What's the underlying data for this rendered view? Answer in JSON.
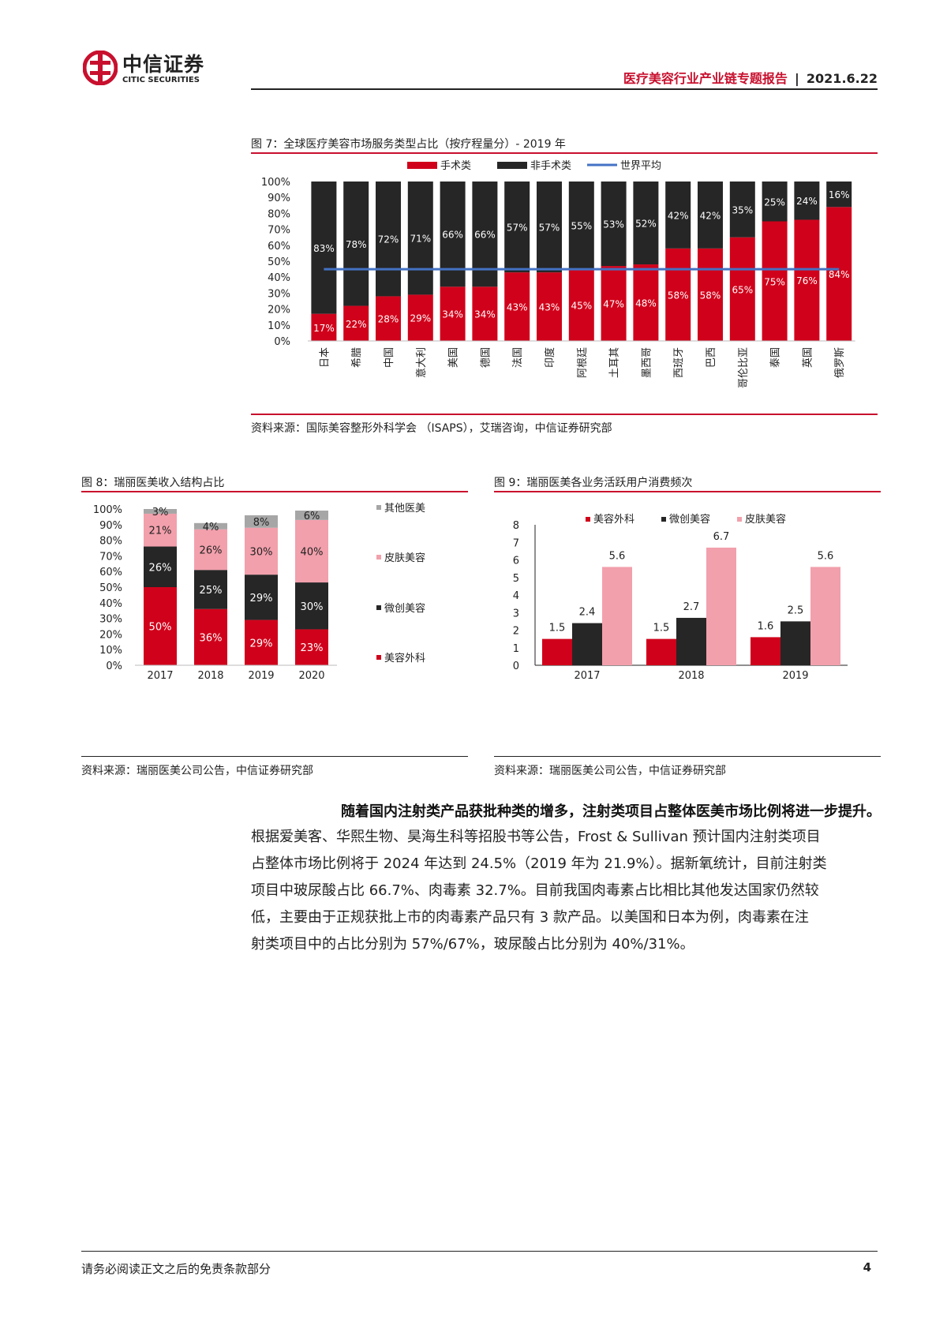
{
  "header": {
    "logo_cn": "中信证券",
    "logo_en": "CITIC SECURITIES",
    "report_title": "医疗美容行业产业链专题报告",
    "separator": "|",
    "date": "2021.6.22"
  },
  "figure7": {
    "title": "图 7：全球医疗美容市场服务类型占比（按疗程量分）- 2019 年",
    "source": "资料来源：国际美容整形外科学会 （ISAPS），艾瑞咨询，中信证券研究部",
    "legend": [
      "手术类",
      "非手术类",
      "世界平均"
    ],
    "colors": {
      "surgical": "#d0021b",
      "nonsurgical": "#262626",
      "average": "#4472c4"
    }
  },
  "figure8": {
    "title": "图 8：瑞丽医美收入结构占比",
    "source": "资料来源：瑞丽医美公司公告，中信证券研究部",
    "legend": [
      "其他医美",
      "皮肤美容",
      "微创美容",
      "美容外科"
    ],
    "colors": {
      "美容外科": "#d0021b",
      "微创美容": "#262626",
      "皮肤美容": "#f2a0ac",
      "其他医美": "#a6a6a6"
    }
  },
  "figure9": {
    "title": "图 9：瑞丽医美各业务活跃用户消费频次",
    "source": "资料来源：瑞丽医美公司公告，中信证券研究部",
    "legend": [
      "美容外科",
      "微创美容",
      "皮肤美容"
    ],
    "colors": {
      "美容外科": "#d0021b",
      "微创美容": "#262626",
      "皮肤美容": "#f2a0ac"
    }
  },
  "chart_data": [
    {
      "type": "bar",
      "stacked": true,
      "categories": [
        "日本",
        "希腊",
        "中国",
        "意大利",
        "美国",
        "德国",
        "法国",
        "印度",
        "阿根廷",
        "土耳其",
        "墨西哥",
        "西班牙",
        "巴西",
        "哥伦比亚",
        "泰国",
        "英国",
        "俄罗斯"
      ],
      "series": [
        {
          "name": "手术类",
          "values": [
            17,
            22,
            28,
            29,
            34,
            34,
            43,
            43,
            45,
            47,
            48,
            58,
            58,
            65,
            75,
            76,
            84
          ]
        },
        {
          "name": "非手术类",
          "values": [
            83,
            78,
            72,
            71,
            66,
            66,
            57,
            57,
            55,
            53,
            52,
            42,
            42,
            35,
            25,
            24,
            16
          ]
        },
        {
          "name": "世界平均",
          "type": "line",
          "values": [
            45,
            45,
            45,
            45,
            45,
            45,
            45,
            45,
            45,
            45,
            45,
            45,
            45,
            45,
            45,
            45,
            45
          ]
        }
      ],
      "yticks": [
        "0%",
        "10%",
        "20%",
        "30%",
        "40%",
        "50%",
        "60%",
        "70%",
        "80%",
        "90%",
        "100%"
      ],
      "ylim": [
        0,
        100
      ],
      "legend": "top"
    },
    {
      "type": "bar",
      "stacked": true,
      "categories": [
        "2017",
        "2018",
        "2019",
        "2020"
      ],
      "series": [
        {
          "name": "美容外科",
          "values": [
            50,
            36,
            29,
            23
          ]
        },
        {
          "name": "微创美容",
          "values": [
            26,
            25,
            29,
            30
          ]
        },
        {
          "name": "皮肤美容",
          "values": [
            21,
            26,
            30,
            40
          ]
        },
        {
          "name": "其他医美",
          "values": [
            3,
            4,
            8,
            6
          ]
        }
      ],
      "yticks": [
        "0%",
        "10%",
        "20%",
        "30%",
        "40%",
        "50%",
        "60%",
        "70%",
        "80%",
        "90%",
        "100%"
      ],
      "ylim": [
        0,
        100
      ],
      "legend": "right"
    },
    {
      "type": "bar",
      "categories": [
        "2017",
        "2018",
        "2019"
      ],
      "series": [
        {
          "name": "美容外科",
          "values": [
            1.5,
            1.5,
            1.6
          ]
        },
        {
          "name": "微创美容",
          "values": [
            2.4,
            2.7,
            2.5
          ]
        },
        {
          "name": "皮肤美容",
          "values": [
            5.6,
            6.7,
            5.6
          ]
        }
      ],
      "yticks": [
        "0",
        "1",
        "2",
        "3",
        "4",
        "5",
        "6",
        "7",
        "8"
      ],
      "ylim": [
        0,
        8
      ],
      "legend": "top"
    }
  ],
  "body": {
    "lead": "随着国内注射类产品获批种类的增多，注射类项目占整体医美市场比例将进一步提升。",
    "lines": [
      "根据爱美客、华熙生物、昊海生科等招股书等公告，Frost & Sullivan 预计国内注射类项目",
      "占整体市场比例将于 2024 年达到 24.5%（2019 年为 21.9%）。据新氧统计，目前注射类",
      "项目中玻尿酸占比 66.7%、肉毒素 32.7%。目前我国肉毒素占比相比其他发达国家仍然较",
      "低，主要由于正规获批上市的肉毒素产品只有 3 款产品。以美国和日本为例，肉毒素在注",
      "射类项目中的占比分别为 57%/67%，玻尿酸占比分别为 40%/31%。"
    ]
  },
  "footer": {
    "disclaimer": "请务必阅读正文之后的免责条款部分",
    "page_number": "4"
  }
}
